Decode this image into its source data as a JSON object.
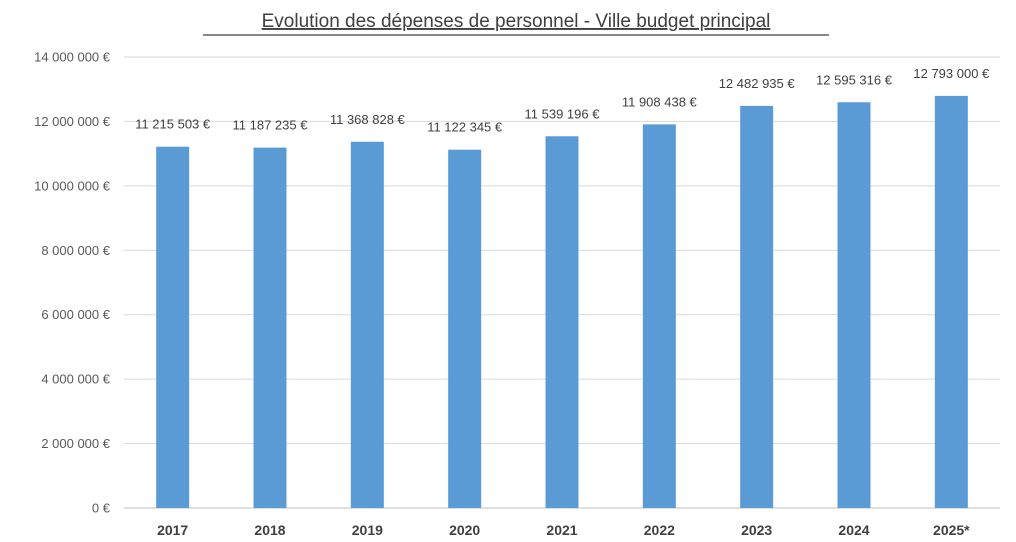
{
  "chart_data": {
    "type": "bar",
    "title": "Evolution des dépenses de personnel - Ville budget principal",
    "categories": [
      "2017",
      "2018",
      "2019",
      "2020",
      "2021",
      "2022",
      "2023",
      "2024",
      "2025*"
    ],
    "values": [
      11215503,
      11187235,
      11368828,
      11122345,
      11539196,
      11908438,
      12482935,
      12595316,
      12793000
    ],
    "data_labels": [
      "11 215 503 €",
      "11 187 235 €",
      "11 368 828 €",
      "11 122 345 €",
      "11 539 196 €",
      "11 908 438 €",
      "12 482 935 €",
      "12 595 316 €",
      "12 793 000 €"
    ],
    "y_ticks": [
      0,
      2000000,
      4000000,
      6000000,
      8000000,
      10000000,
      12000000,
      14000000
    ],
    "y_tick_labels": [
      "0 €",
      "2 000 000 €",
      "4 000 000 €",
      "6 000 000 €",
      "8 000 000 €",
      "10 000 000 €",
      "12 000 000 €",
      "14 000 000 €"
    ],
    "ylim": [
      0,
      14000000
    ],
    "xlabel": "",
    "ylabel": "",
    "grid": true,
    "legend": "none",
    "bar_color": "#5b9bd5"
  }
}
